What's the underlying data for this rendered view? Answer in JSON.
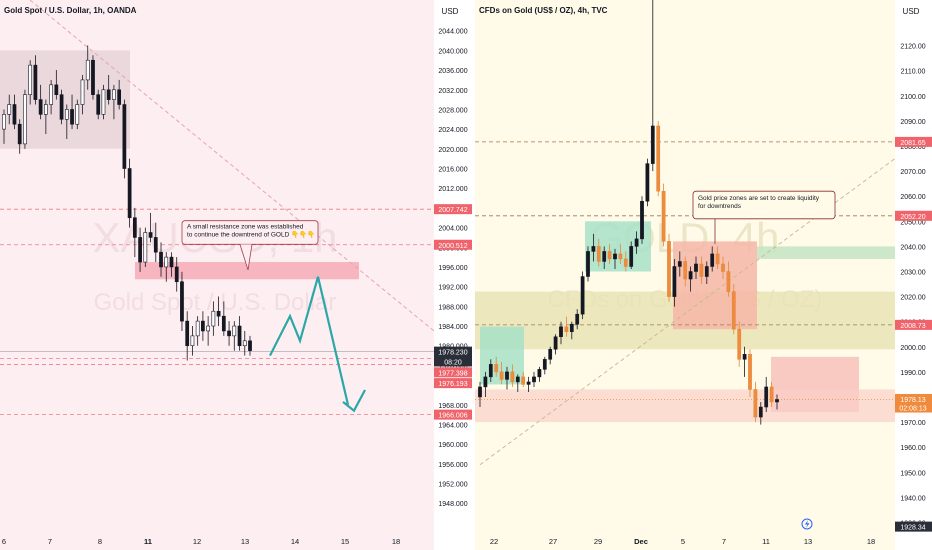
{
  "chart_data": [
    {
      "type": "candlestick",
      "title": "Gold Spot / U.S. Dollar, 1h, OANDA",
      "watermark_symbol": "XAUUSD, 1h",
      "watermark_name": "Gold Spot / U.S. Dollar",
      "currency_label": "USD",
      "ylim": [
        1945,
        2048
      ],
      "y_ticks": [
        "2044.000",
        "2040.000",
        "2036.000",
        "2032.000",
        "2028.000",
        "2024.000",
        "2020.000",
        "2016.000",
        "2012.000",
        "2008.000",
        "2004.000",
        "2000.000",
        "1996.000",
        "1992.000",
        "1988.000",
        "1984.000",
        "1980.000",
        "1976.000",
        "1972.000",
        "1968.000",
        "1964.000",
        "1960.000",
        "1956.000",
        "1952.000",
        "1948.000"
      ],
      "x_ticks": [
        "6",
        "7",
        "8",
        "11",
        "12",
        "13",
        "14",
        "15",
        "18"
      ],
      "price_tags": [
        {
          "label": "2007.742",
          "value": 2007.742,
          "color": "#f0636b"
        },
        {
          "label": "2000.512",
          "value": 2000.512,
          "color": "#f0636b"
        },
        {
          "label": "1978.230",
          "value": 1978.8,
          "color": "#2a2e39"
        },
        {
          "label": "08:20",
          "value": 1976.8,
          "color": "#2a2e39"
        },
        {
          "label": "1977.398",
          "value": 1974.6,
          "color": "#f0636b"
        },
        {
          "label": "1976.193",
          "value": 1972.4,
          "color": "#f0636b"
        },
        {
          "label": "1966.006",
          "value": 1966.0,
          "color": "#f0636b"
        }
      ],
      "annotation": "A small resistance zone was established to continue the downtrend of GOLD 👇👇👇",
      "ohlc": [
        [
          2024,
          2028,
          2021,
          2027
        ],
        [
          2027,
          2031,
          2025,
          2029
        ],
        [
          2029,
          2031,
          2024,
          2025
        ],
        [
          2025,
          2026,
          2019,
          2021
        ],
        [
          2021,
          2032,
          2020,
          2031
        ],
        [
          2031,
          2038,
          2029,
          2037
        ],
        [
          2037,
          2039,
          2029,
          2030
        ],
        [
          2030,
          2033,
          2026,
          2027
        ],
        [
          2027,
          2030,
          2023,
          2029
        ],
        [
          2029,
          2034,
          2027,
          2033
        ],
        [
          2033,
          2036,
          2030,
          2031
        ],
        [
          2031,
          2032,
          2025,
          2026
        ],
        [
          2026,
          2029,
          2022,
          2028
        ],
        [
          2028,
          2031,
          2024,
          2025
        ],
        [
          2025,
          2030,
          2024,
          2029
        ],
        [
          2029,
          2035,
          2027,
          2034
        ],
        [
          2034,
          2041,
          2032,
          2038
        ],
        [
          2038,
          2039,
          2030,
          2031
        ],
        [
          2031,
          2032,
          2026,
          2027
        ],
        [
          2027,
          2033,
          2026,
          2032
        ],
        [
          2032,
          2035,
          2029,
          2030
        ],
        [
          2030,
          2033,
          2026,
          2032
        ],
        [
          2032,
          2034,
          2028,
          2029
        ],
        [
          2029,
          2030,
          2014,
          2016
        ],
        [
          2016,
          2018,
          2004,
          2006
        ],
        [
          2006,
          2008,
          1998,
          2002
        ],
        [
          2002,
          2004,
          1995,
          1997
        ],
        [
          1997,
          2004,
          1996,
          2003
        ],
        [
          2003,
          2007,
          2001,
          2002
        ],
        [
          2002,
          2005,
          1997,
          1999
        ],
        [
          1999,
          2001,
          1994,
          1996
        ],
        [
          1996,
          1999,
          1993,
          1998
        ],
        [
          1998,
          1999,
          1994,
          1996
        ],
        [
          1996,
          1998,
          1991,
          1993
        ],
        [
          1993,
          1995,
          1983,
          1985
        ],
        [
          1985,
          1987,
          1977,
          1980
        ],
        [
          1980,
          1984,
          1978,
          1982
        ],
        [
          1982,
          1986,
          1980,
          1985
        ],
        [
          1985,
          1987,
          1981,
          1983
        ],
        [
          1983,
          1986,
          1980,
          1984
        ],
        [
          1984,
          1989,
          1982,
          1987
        ],
        [
          1987,
          1990,
          1984,
          1986
        ],
        [
          1986,
          1989,
          1982,
          1983
        ],
        [
          1983,
          1985,
          1980,
          1982
        ],
        [
          1982,
          1985,
          1979,
          1984
        ],
        [
          1984,
          1986,
          1979,
          1980
        ],
        [
          1980,
          1983,
          1978,
          1981
        ],
        [
          1981,
          1982,
          1978,
          1979
        ]
      ]
    },
    {
      "type": "candlestick",
      "title": "CFDs on Gold (US$ / OZ), 4h, TVC",
      "watermark_symbol": "GOLD, 4h",
      "watermark_name": "CFDs on Gold (US$ / OZ)",
      "currency_label": "USD",
      "ylim": [
        1925,
        2135
      ],
      "y_ticks": [
        "2120.00",
        "2110.00",
        "2100.00",
        "2090.00",
        "2080.00",
        "2070.00",
        "2060.00",
        "2050.00",
        "2040.00",
        "2030.00",
        "2020.00",
        "2010.00",
        "2000.00",
        "1990.00",
        "1980.00",
        "1970.00",
        "1960.00",
        "1950.00",
        "1940.00",
        "1930.00"
      ],
      "x_ticks": [
        "22",
        "27",
        "29",
        "Dec",
        "5",
        "7",
        "11",
        "13",
        "18"
      ],
      "price_tags": [
        {
          "label": "2081.65",
          "value": 2081.65,
          "color": "#f0636b"
        },
        {
          "label": "2052.20",
          "value": 2052.2,
          "color": "#f0636b"
        },
        {
          "label": "2008.73",
          "value": 2008.73,
          "color": "#f0636b"
        },
        {
          "label": "1978.13",
          "value": 1979.2,
          "color": "#f08a3c"
        },
        {
          "label": "02:08:13",
          "value": 1975.8,
          "color": "#f08a3c"
        },
        {
          "label": "1928.34",
          "value": 1928.34,
          "color": "#2a2e39"
        }
      ],
      "annotation": "Gold price zones are set to create liquidity for downtrends",
      "ohlc": [
        [
          1980,
          1986,
          1976,
          1984
        ],
        [
          1984,
          1990,
          1980,
          1988
        ],
        [
          1988,
          1995,
          1986,
          1993
        ],
        [
          1993,
          1996,
          1988,
          1990
        ],
        [
          1990,
          1994,
          1985,
          1987
        ],
        [
          1987,
          1992,
          1983,
          1990
        ],
        [
          1990,
          1993,
          1984,
          1986
        ],
        [
          1986,
          1989,
          1982,
          1988
        ],
        [
          1988,
          1990,
          1984,
          1985
        ],
        [
          1985,
          1988,
          1982,
          1986
        ],
        [
          1986,
          1990,
          1984,
          1988
        ],
        [
          1988,
          1992,
          1986,
          1991
        ],
        [
          1991,
          1996,
          1989,
          1995
        ],
        [
          1995,
          2000,
          1993,
          1999
        ],
        [
          1999,
          2005,
          1997,
          2004
        ],
        [
          2004,
          2010,
          2001,
          2008
        ],
        [
          2008,
          2012,
          2004,
          2006
        ],
        [
          2006,
          2010,
          2003,
          2009
        ],
        [
          2009,
          2015,
          2007,
          2013
        ],
        [
          2013,
          2030,
          2011,
          2028
        ],
        [
          2028,
          2040,
          2026,
          2038
        ],
        [
          2038,
          2045,
          2034,
          2040
        ],
        [
          2040,
          2043,
          2032,
          2034
        ],
        [
          2034,
          2040,
          2031,
          2038
        ],
        [
          2038,
          2041,
          2033,
          2035
        ],
        [
          2035,
          2039,
          2031,
          2037
        ],
        [
          2037,
          2041,
          2033,
          2035
        ],
        [
          2035,
          2038,
          2030,
          2032
        ],
        [
          2032,
          2042,
          2031,
          2040
        ],
        [
          2040,
          2046,
          2037,
          2043
        ],
        [
          2043,
          2060,
          2041,
          2058
        ],
        [
          2058,
          2075,
          2056,
          2073
        ],
        [
          2073,
          2140,
          2070,
          2088
        ],
        [
          2088,
          2090,
          2060,
          2062
        ],
        [
          2062,
          2065,
          2040,
          2042
        ],
        [
          2042,
          2045,
          2018,
          2020
        ],
        [
          2020,
          2035,
          2016,
          2032
        ],
        [
          2032,
          2038,
          2028,
          2034
        ],
        [
          2034,
          2036,
          2024,
          2027
        ],
        [
          2027,
          2032,
          2022,
          2030
        ],
        [
          2030,
          2036,
          2027,
          2033
        ],
        [
          2033,
          2036,
          2025,
          2028
        ],
        [
          2028,
          2034,
          2025,
          2032
        ],
        [
          2032,
          2040,
          2030,
          2037
        ],
        [
          2037,
          2040,
          2031,
          2033
        ],
        [
          2033,
          2036,
          2027,
          2030
        ],
        [
          2030,
          2034,
          2020,
          2022
        ],
        [
          2022,
          2025,
          2005,
          2007
        ],
        [
          2007,
          2010,
          1992,
          1995
        ],
        [
          1995,
          2000,
          1988,
          1997
        ],
        [
          1997,
          1999,
          1980,
          1983
        ],
        [
          1983,
          1986,
          1970,
          1972
        ],
        [
          1972,
          1978,
          1969,
          1976
        ],
        [
          1976,
          1988,
          1974,
          1984
        ],
        [
          1984,
          1986,
          1976,
          1978
        ],
        [
          1978,
          1981,
          1975,
          1979
        ]
      ]
    }
  ]
}
